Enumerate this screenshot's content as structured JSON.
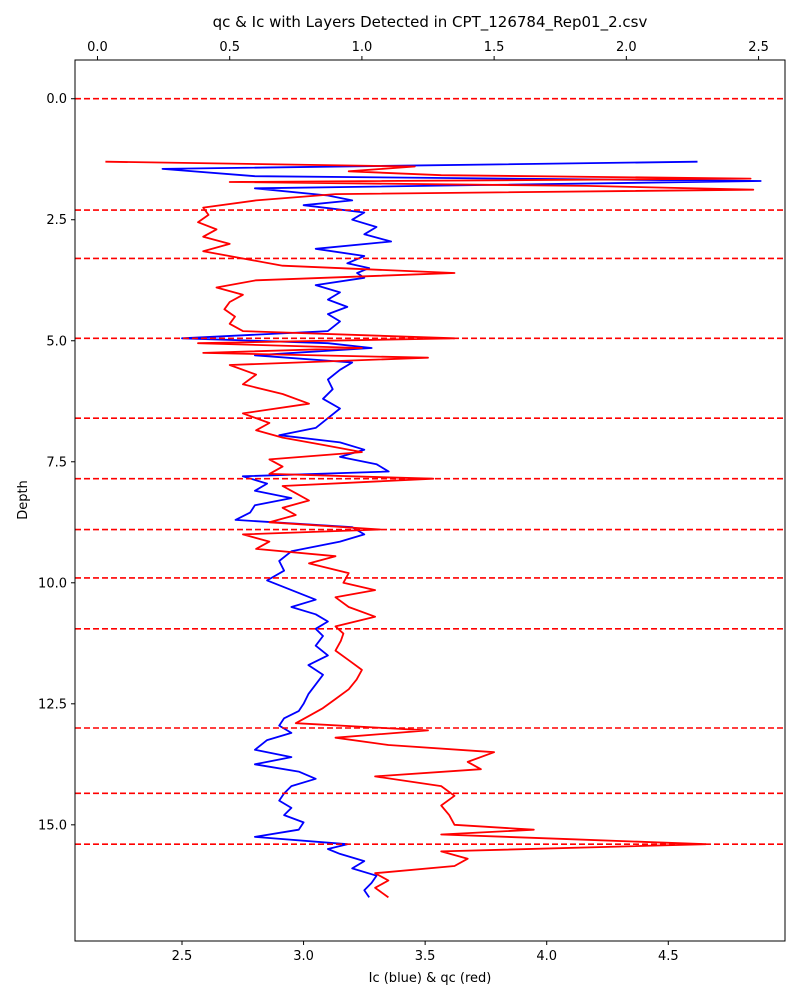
{
  "chart_data": {
    "type": "line",
    "title": "qc & Ic with Layers Detected in CPT_126784_Rep01_2.csv",
    "xlabel": "Ic (blue) & qc (red)",
    "ylabel": "Depth",
    "y_inverted": true,
    "ylim": [
      17.4,
      -0.8
    ],
    "x_bottom": {
      "lim": [
        2.06,
        4.98
      ],
      "ticks": [
        2.5,
        3.0,
        3.5,
        4.0,
        4.5
      ],
      "tick_labels": [
        "2.5",
        "3.0",
        "3.5",
        "4.0",
        "4.5"
      ]
    },
    "x_top": {
      "lim": [
        -0.085,
        2.6
      ],
      "ticks": [
        0.0,
        0.5,
        1.0,
        1.5,
        2.0,
        2.5
      ],
      "tick_labels": [
        "0.0",
        "0.5",
        "1.0",
        "1.5",
        "2.0",
        "2.5"
      ]
    },
    "y_ticks": [
      0.0,
      2.5,
      5.0,
      7.5,
      10.0,
      12.5,
      15.0
    ],
    "y_tick_labels": [
      "0.0",
      "2.5",
      "5.0",
      "7.5",
      "10.0",
      "12.5",
      "15.0"
    ],
    "grid": false,
    "legend": "none",
    "layer_boundaries": {
      "color": "#ff0000",
      "style": "dashed",
      "depths": [
        0.0,
        2.3,
        3.3,
        4.95,
        6.6,
        7.85,
        8.9,
        9.9,
        10.95,
        13.0,
        14.35,
        15.4
      ]
    },
    "series": [
      {
        "axis": "bottom",
        "color": "#0000ff",
        "depth": [
          1.3,
          1.45,
          1.6,
          1.7,
          1.85,
          2.0,
          2.1,
          2.2,
          2.35,
          2.5,
          2.65,
          2.8,
          2.95,
          3.1,
          3.25,
          3.4,
          3.5,
          3.6,
          3.7,
          3.85,
          4.0,
          4.15,
          4.3,
          4.45,
          4.6,
          4.8,
          4.95,
          5.05,
          5.15,
          5.3,
          5.45,
          5.6,
          5.8,
          6.0,
          6.2,
          6.4,
          6.6,
          6.8,
          6.95,
          7.1,
          7.25,
          7.4,
          7.55,
          7.7,
          7.8,
          7.95,
          8.1,
          8.25,
          8.4,
          8.55,
          8.7,
          8.85,
          9.0,
          9.15,
          9.35,
          9.55,
          9.75,
          9.95,
          10.15,
          10.35,
          10.5,
          10.65,
          10.8,
          10.95,
          11.1,
          11.3,
          11.5,
          11.7,
          11.9,
          12.1,
          12.3,
          12.5,
          12.65,
          12.8,
          12.95,
          13.1,
          13.25,
          13.45,
          13.6,
          13.75,
          13.9,
          14.05,
          14.2,
          14.35,
          14.5,
          14.65,
          14.8,
          14.95,
          15.1,
          15.25,
          15.4,
          15.5,
          15.6,
          15.75,
          15.9,
          16.05,
          16.2,
          16.35,
          16.5
        ],
        "values": [
          4.62,
          2.42,
          2.8,
          4.88,
          2.8,
          3.1,
          3.2,
          3.0,
          3.25,
          3.2,
          3.3,
          3.25,
          3.36,
          3.05,
          3.25,
          3.18,
          3.27,
          3.22,
          3.25,
          3.05,
          3.15,
          3.1,
          3.18,
          3.1,
          3.15,
          3.1,
          2.5,
          3.1,
          3.28,
          2.8,
          3.2,
          3.15,
          3.1,
          3.12,
          3.08,
          3.15,
          3.1,
          3.05,
          2.9,
          3.15,
          3.25,
          3.15,
          3.3,
          3.35,
          2.75,
          2.85,
          2.8,
          2.95,
          2.8,
          2.78,
          2.72,
          3.2,
          3.25,
          3.15,
          2.95,
          2.9,
          2.92,
          2.85,
          2.95,
          3.05,
          2.95,
          3.05,
          3.1,
          3.05,
          3.08,
          3.05,
          3.1,
          3.02,
          3.08,
          3.05,
          3.02,
          3.0,
          2.98,
          2.92,
          2.9,
          2.95,
          2.85,
          2.8,
          2.95,
          2.8,
          2.98,
          3.05,
          2.95,
          2.92,
          2.9,
          2.95,
          2.92,
          3.0,
          2.98,
          2.8,
          3.18,
          3.1,
          3.15,
          3.25,
          3.2,
          3.3,
          3.28,
          3.25,
          3.27
        ]
      },
      {
        "axis": "top",
        "color": "#ff0000",
        "depth": [
          1.3,
          1.4,
          1.5,
          1.58,
          1.65,
          1.72,
          1.8,
          1.88,
          1.97,
          2.1,
          2.25,
          2.4,
          2.55,
          2.7,
          2.85,
          3.0,
          3.15,
          3.3,
          3.45,
          3.6,
          3.75,
          3.9,
          4.05,
          4.2,
          4.35,
          4.5,
          4.65,
          4.8,
          4.95,
          5.05,
          5.15,
          5.25,
          5.35,
          5.5,
          5.7,
          5.9,
          6.1,
          6.3,
          6.5,
          6.7,
          6.85,
          7.0,
          7.15,
          7.3,
          7.45,
          7.6,
          7.75,
          7.85,
          8.0,
          8.15,
          8.3,
          8.45,
          8.6,
          8.75,
          8.9,
          9.0,
          9.15,
          9.3,
          9.45,
          9.6,
          9.8,
          10.0,
          10.15,
          10.3,
          10.5,
          10.7,
          10.9,
          11.05,
          11.2,
          11.4,
          11.6,
          11.8,
          12.0,
          12.2,
          12.4,
          12.6,
          12.75,
          12.9,
          13.05,
          13.2,
          13.35,
          13.5,
          13.7,
          13.85,
          14.0,
          14.2,
          14.4,
          14.6,
          14.8,
          15.0,
          15.1,
          15.2,
          15.3,
          15.4,
          15.55,
          15.7,
          15.85,
          16.0,
          16.15,
          16.3,
          16.5
        ],
        "values": [
          0.03,
          1.2,
          0.95,
          1.3,
          2.47,
          0.5,
          1.85,
          2.48,
          0.9,
          0.6,
          0.4,
          0.42,
          0.38,
          0.45,
          0.4,
          0.5,
          0.4,
          0.55,
          0.7,
          1.35,
          0.6,
          0.45,
          0.55,
          0.5,
          0.48,
          0.52,
          0.5,
          0.55,
          1.35,
          0.38,
          1.0,
          0.4,
          1.25,
          0.5,
          0.6,
          0.55,
          0.7,
          0.8,
          0.55,
          0.65,
          0.6,
          0.7,
          0.85,
          1.0,
          0.65,
          0.7,
          0.65,
          1.27,
          0.7,
          0.75,
          0.8,
          0.7,
          0.75,
          0.65,
          1.07,
          0.55,
          0.65,
          0.6,
          0.9,
          0.8,
          0.95,
          0.93,
          1.05,
          0.9,
          0.95,
          1.05,
          0.9,
          0.93,
          0.92,
          0.9,
          0.95,
          1.0,
          0.98,
          0.95,
          0.9,
          0.85,
          0.8,
          0.75,
          1.25,
          0.9,
          1.1,
          1.5,
          1.4,
          1.45,
          1.05,
          1.3,
          1.35,
          1.3,
          1.33,
          1.35,
          1.65,
          1.3,
          1.8,
          2.3,
          1.3,
          1.4,
          1.35,
          1.05,
          1.1,
          1.05,
          1.1
        ]
      }
    ]
  }
}
